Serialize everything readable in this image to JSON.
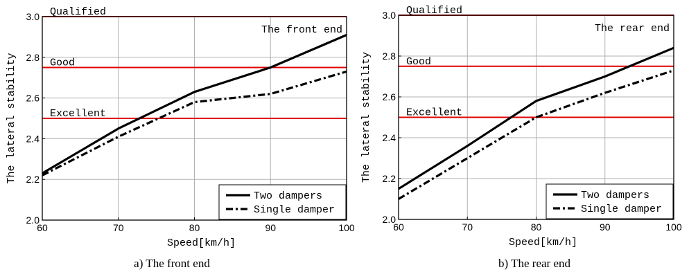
{
  "chart_data": [
    {
      "type": "line",
      "caption": "a) The front end",
      "corner_label": "The front end",
      "xlabel": "Speed[km/h]",
      "ylabel": "The lateral stability",
      "xlim": [
        60,
        100
      ],
      "ylim": [
        2.0,
        3.0
      ],
      "xticks": [
        "60",
        "70",
        "80",
        "90",
        "100"
      ],
      "yticks": [
        "2.0",
        "2.2",
        "2.4",
        "2.6",
        "2.8",
        "3.0"
      ],
      "grid": true,
      "legend_position": "bottom-right",
      "thresholds": [
        {
          "name": "Qualified",
          "value": 3.0,
          "color": "#e00000"
        },
        {
          "name": "Good",
          "value": 2.75,
          "color": "#e00000"
        },
        {
          "name": "Excellent",
          "value": 2.5,
          "color": "#e00000"
        }
      ],
      "series": [
        {
          "name": "Two dampers",
          "style": "solid",
          "x": [
            60,
            70,
            80,
            90,
            100
          ],
          "y": [
            2.23,
            2.45,
            2.63,
            2.75,
            2.91
          ]
        },
        {
          "name": "Single damper",
          "style": "dashdot",
          "x": [
            60,
            70,
            80,
            90,
            100
          ],
          "y": [
            2.22,
            2.41,
            2.58,
            2.62,
            2.73
          ]
        }
      ]
    },
    {
      "type": "line",
      "caption": "b) The rear end",
      "corner_label": "The rear end",
      "xlabel": "Speed[km/h]",
      "ylabel": "The lateral stability",
      "xlim": [
        60,
        100
      ],
      "ylim": [
        2.0,
        3.0
      ],
      "xticks": [
        "60",
        "70",
        "80",
        "90",
        "100"
      ],
      "yticks": [
        "2.0",
        "2.2",
        "2.4",
        "2.6",
        "2.8",
        "3.0"
      ],
      "grid": true,
      "legend_position": "bottom-right",
      "thresholds": [
        {
          "name": "Qualified",
          "value": 3.0,
          "color": "#e00000"
        },
        {
          "name": "Good",
          "value": 2.75,
          "color": "#e00000"
        },
        {
          "name": "Excellent",
          "value": 2.5,
          "color": "#e00000"
        }
      ],
      "series": [
        {
          "name": "Two dampers",
          "style": "solid",
          "x": [
            60,
            70,
            80,
            90,
            100
          ],
          "y": [
            2.15,
            2.36,
            2.58,
            2.7,
            2.84
          ]
        },
        {
          "name": "Single damper",
          "style": "dashdot",
          "x": [
            60,
            70,
            80,
            90,
            100
          ],
          "y": [
            2.1,
            2.3,
            2.5,
            2.62,
            2.73
          ]
        }
      ]
    }
  ]
}
